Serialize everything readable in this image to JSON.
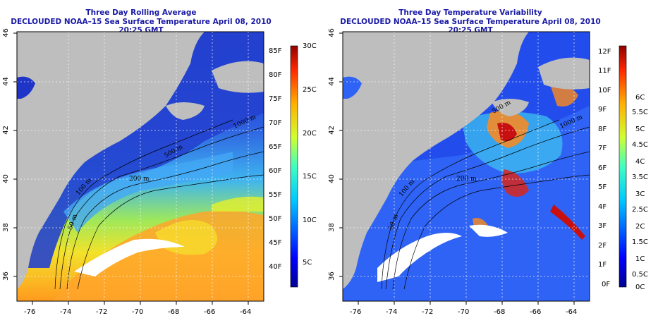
{
  "maps": [
    {
      "title": "Three Day Rolling Average",
      "subtitle": "DECLOUDED NOAA–15 Sea Surface Temperature April 08, 2010 20:25 GMT",
      "x_ticks": [
        "-76",
        "-74",
        "-72",
        "-70",
        "-68",
        "-66",
        "-64"
      ],
      "y_ticks": [
        "46",
        "44",
        "42",
        "40",
        "38",
        "36"
      ],
      "colorbar_left": [
        "85F",
        "80F",
        "75F",
        "70F",
        "65F",
        "60F",
        "55F",
        "50F",
        "45F",
        "40F"
      ],
      "colorbar_right": [
        "30C",
        "25C",
        "20C",
        "15C",
        "10C",
        "5C"
      ],
      "contour_labels": [
        "200 m",
        "50 m",
        "100 m",
        "500 m",
        "1000 m"
      ],
      "colors": {
        "land": "#bebebe",
        "cold": "#1a3fd6",
        "warm": "#ff9a1e"
      }
    },
    {
      "title": "Three Day Temperature Variability",
      "subtitle": "DECLOUDED NOAA–15 Sea Surface Temperature April 08, 2010 20:25 GMT",
      "x_ticks": [
        "-76",
        "-74",
        "-72",
        "-70",
        "-68",
        "-66",
        "-64"
      ],
      "y_ticks": [
        "46",
        "44",
        "42",
        "40",
        "38",
        "36"
      ],
      "colorbar_left": [
        "12F",
        "11F",
        "10F",
        "9F",
        "8F",
        "7F",
        "6F",
        "5F",
        "4F",
        "3F",
        "2F",
        "1F",
        "0F"
      ],
      "colorbar_right": [
        "6C",
        "5.5C",
        "5C",
        "4.5C",
        "4C",
        "3.5C",
        "3C",
        "2.5C",
        "2C",
        "1.5C",
        "1C",
        "0.5C",
        "0C"
      ],
      "contour_labels": [
        "200 m",
        "1000 m",
        "500 m",
        "100 m",
        "50 m"
      ],
      "colors": {
        "land": "#bebebe",
        "low": "#2a5bff",
        "high": "#c81010"
      }
    }
  ]
}
